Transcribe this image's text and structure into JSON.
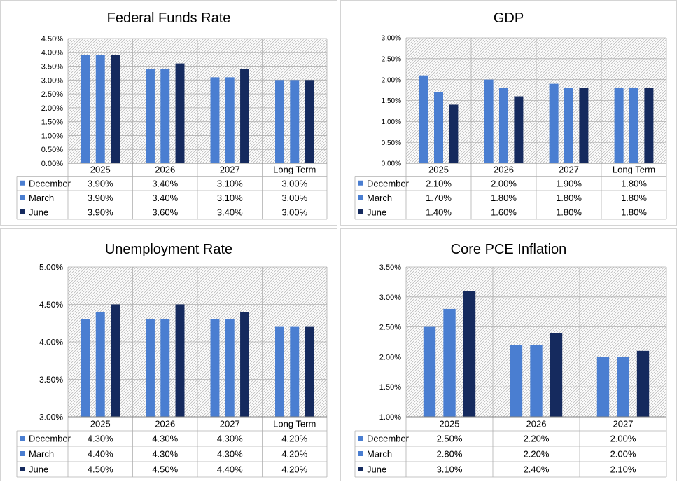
{
  "colors": {
    "December": "#4a7ed1",
    "March": "#4a7ed1",
    "June": "#152a5e"
  },
  "chart_data": [
    {
      "type": "bar",
      "title": "Federal Funds Rate",
      "categories": [
        "2025",
        "2026",
        "2027",
        "Long Term"
      ],
      "ylim": [
        0,
        4.5
      ],
      "yticks": [
        "0.00%",
        "0.50%",
        "1.00%",
        "1.50%",
        "2.00%",
        "2.50%",
        "3.00%",
        "3.50%",
        "4.00%",
        "4.50%"
      ],
      "grid": true,
      "legend": "table-below",
      "series": [
        {
          "name": "December",
          "values": [
            3.9,
            3.4,
            3.1,
            3.0
          ],
          "labels": [
            "3.90%",
            "3.40%",
            "3.10%",
            "3.00%"
          ]
        },
        {
          "name": "March",
          "values": [
            3.9,
            3.4,
            3.1,
            3.0
          ],
          "labels": [
            "3.90%",
            "3.40%",
            "3.10%",
            "3.00%"
          ]
        },
        {
          "name": "June",
          "values": [
            3.9,
            3.6,
            3.4,
            3.0
          ],
          "labels": [
            "3.90%",
            "3.60%",
            "3.40%",
            "3.00%"
          ]
        }
      ]
    },
    {
      "type": "bar",
      "title": "GDP",
      "categories": [
        "2025",
        "2026",
        "2027",
        "Long Term"
      ],
      "ylim": [
        0,
        3.0
      ],
      "yticks": [
        "0.00%",
        "0.50%",
        "1.00%",
        "1.50%",
        "2.00%",
        "2.50%",
        "3.00%"
      ],
      "grid": true,
      "legend": "table-below",
      "series": [
        {
          "name": "December",
          "values": [
            2.1,
            2.0,
            1.9,
            1.8
          ],
          "labels": [
            "2.10%",
            "2.00%",
            "1.90%",
            "1.80%"
          ]
        },
        {
          "name": "March",
          "values": [
            1.7,
            1.8,
            1.8,
            1.8
          ],
          "labels": [
            "1.70%",
            "1.80%",
            "1.80%",
            "1.80%"
          ]
        },
        {
          "name": "June",
          "values": [
            1.4,
            1.6,
            1.8,
            1.8
          ],
          "labels": [
            "1.40%",
            "1.60%",
            "1.80%",
            "1.80%"
          ]
        }
      ]
    },
    {
      "type": "bar",
      "title": "Unemployment Rate",
      "categories": [
        "2025",
        "2026",
        "2027",
        "Long Term"
      ],
      "ylim": [
        3.0,
        5.0
      ],
      "yticks": [
        "3.00%",
        "3.50%",
        "4.00%",
        "4.50%",
        "5.00%"
      ],
      "grid": true,
      "legend": "table-below",
      "series": [
        {
          "name": "December",
          "values": [
            4.3,
            4.3,
            4.3,
            4.2
          ],
          "labels": [
            "4.30%",
            "4.30%",
            "4.30%",
            "4.20%"
          ]
        },
        {
          "name": "March",
          "values": [
            4.4,
            4.3,
            4.3,
            4.2
          ],
          "labels": [
            "4.40%",
            "4.30%",
            "4.30%",
            "4.20%"
          ]
        },
        {
          "name": "June",
          "values": [
            4.5,
            4.5,
            4.4,
            4.2
          ],
          "labels": [
            "4.50%",
            "4.50%",
            "4.40%",
            "4.20%"
          ]
        }
      ]
    },
    {
      "type": "bar",
      "title": "Core PCE Inflation",
      "categories": [
        "2025",
        "2026",
        "2027"
      ],
      "ylim": [
        1.0,
        3.5
      ],
      "yticks": [
        "1.00%",
        "1.50%",
        "2.00%",
        "2.50%",
        "3.00%",
        "3.50%"
      ],
      "grid": true,
      "legend": "table-below",
      "series": [
        {
          "name": "December",
          "values": [
            2.5,
            2.2,
            2.0
          ],
          "labels": [
            "2.50%",
            "2.20%",
            "2.00%"
          ]
        },
        {
          "name": "March",
          "values": [
            2.8,
            2.2,
            2.0
          ],
          "labels": [
            "2.80%",
            "2.20%",
            "2.00%"
          ]
        },
        {
          "name": "June",
          "values": [
            3.1,
            2.4,
            2.1
          ],
          "labels": [
            "3.10%",
            "2.40%",
            "2.10%"
          ]
        }
      ]
    }
  ]
}
